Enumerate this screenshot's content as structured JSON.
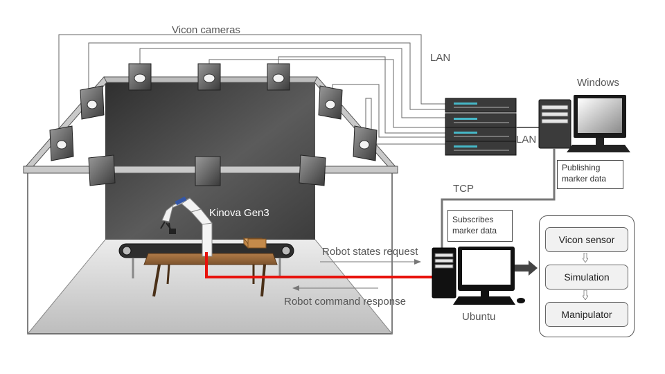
{
  "labels": {
    "vicon_cameras": "Vicon cameras",
    "lan_top": "LAN",
    "lan_side": "LAN",
    "windows": "Windows",
    "tcp": "TCP",
    "kinova": "Kinova Gen3",
    "robot_states_request": "Robot states request",
    "robot_command_response": "Robot command response",
    "ubuntu": "Ubuntu"
  },
  "notes": {
    "publishing": [
      "Publishing",
      "marker data"
    ],
    "subscribes": [
      "Subscribes",
      "marker data"
    ]
  },
  "software_stack": [
    "Vicon sensor",
    "Simulation",
    "Manipulator"
  ],
  "colors": {
    "robot_cable": "#e8120c",
    "backdrop": "#4a4a4a",
    "floor": "#cfcfcf",
    "table": "#9b6a3c",
    "box": "#c48a4a",
    "server_accent": "#46b8c8"
  },
  "icons": [
    "camera-icon",
    "server-rack-icon",
    "desktop-pc-icon",
    "robot-arm-icon",
    "conveyor-belt-icon"
  ]
}
